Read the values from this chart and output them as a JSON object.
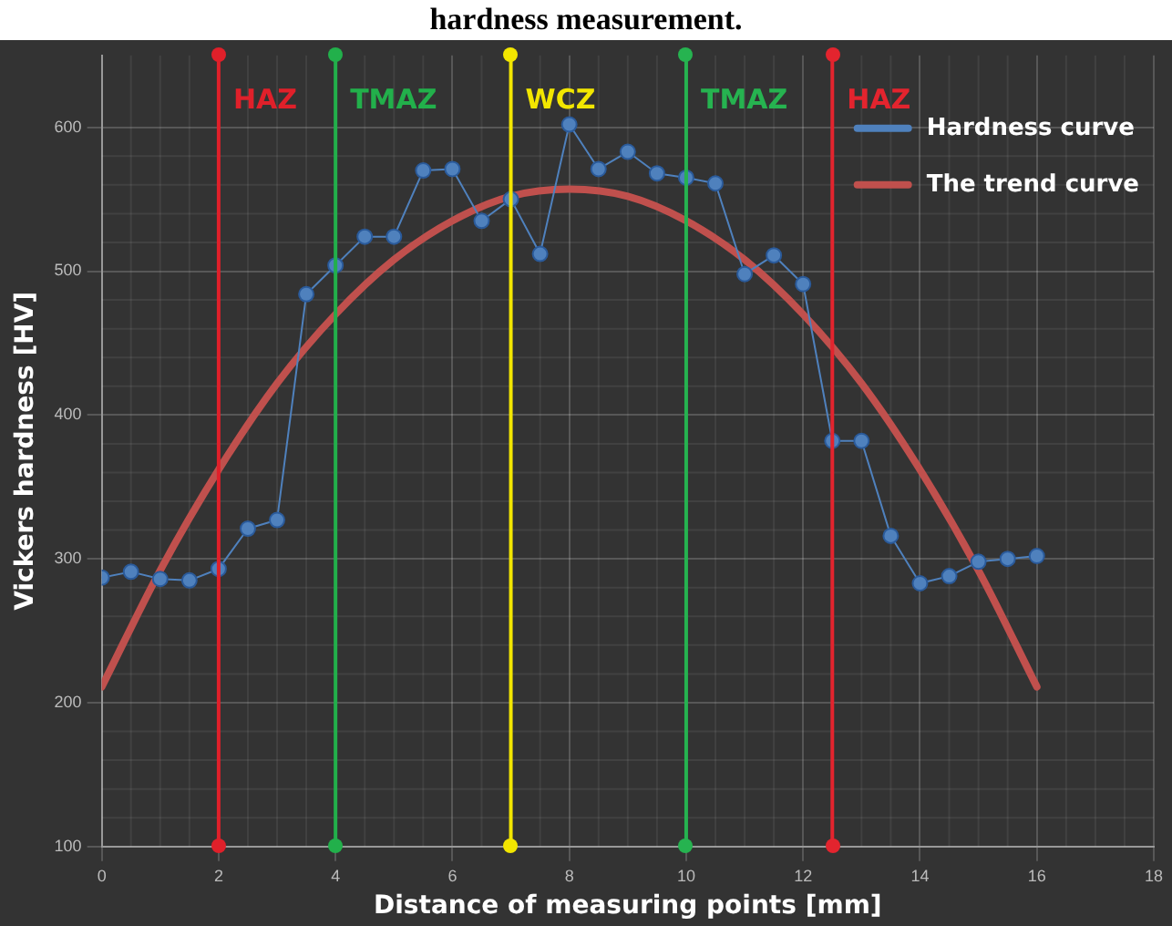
{
  "chart_data": {
    "type": "line",
    "title": "hardness measurement.",
    "xlabel": "Distance of measuring points [mm]",
    "ylabel": "Vickers hardness [HV]",
    "xlim": [
      0,
      18
    ],
    "xticks": [
      0,
      2,
      4,
      6,
      8,
      10,
      12,
      14,
      16,
      18
    ],
    "ylim": [
      100,
      650
    ],
    "yticks": [
      100,
      200,
      300,
      400,
      500,
      600
    ],
    "grid": true,
    "legend": "top right",
    "marker": "circle",
    "line_style": "solid",
    "series": [
      {
        "name": "Hardness curve",
        "color": "#4f81bd",
        "x": [
          0,
          0.5,
          1,
          1.5,
          2,
          2.5,
          3,
          3.5,
          4,
          4.5,
          5,
          5.5,
          6,
          6.5,
          7,
          7.5,
          8,
          8.5,
          9,
          9.5,
          10,
          10.5,
          11,
          11.5,
          12,
          12.5,
          13,
          13.5,
          14,
          14.5,
          15,
          15.5,
          16
        ],
        "values": [
          287,
          291,
          286,
          285,
          293,
          321,
          327,
          484,
          504,
          524,
          524,
          570,
          571,
          535,
          550,
          512,
          602,
          571,
          583,
          568,
          565,
          561,
          498,
          511,
          491,
          382,
          382,
          316,
          283,
          288,
          298,
          300,
          302
        ]
      },
      {
        "name": "The trend curve",
        "color": "#c0504d",
        "marker": "none",
        "x": [
          0,
          1,
          2,
          3,
          4,
          5,
          6,
          7,
          8,
          9,
          10,
          11,
          12,
          13,
          14,
          15,
          16
        ],
        "values": [
          211,
          292,
          362,
          422,
          470,
          508,
          535,
          552,
          557,
          552,
          535,
          508,
          470,
          422,
          362,
          292,
          211
        ]
      }
    ],
    "ref_lines": [
      {
        "axis": "x",
        "value": 2,
        "label": "HAZ",
        "color": "#e0202a"
      },
      {
        "axis": "x",
        "value": 4,
        "label": "TMAZ",
        "color": "#22b04b"
      },
      {
        "axis": "x",
        "value": 7,
        "label": "WCZ",
        "color": "#f2e600"
      },
      {
        "axis": "x",
        "value": 10,
        "label": "TMAZ",
        "color": "#26b350"
      },
      {
        "axis": "x",
        "value": 12.5,
        "label": "HAZ",
        "color": "#e3242e"
      }
    ]
  }
}
